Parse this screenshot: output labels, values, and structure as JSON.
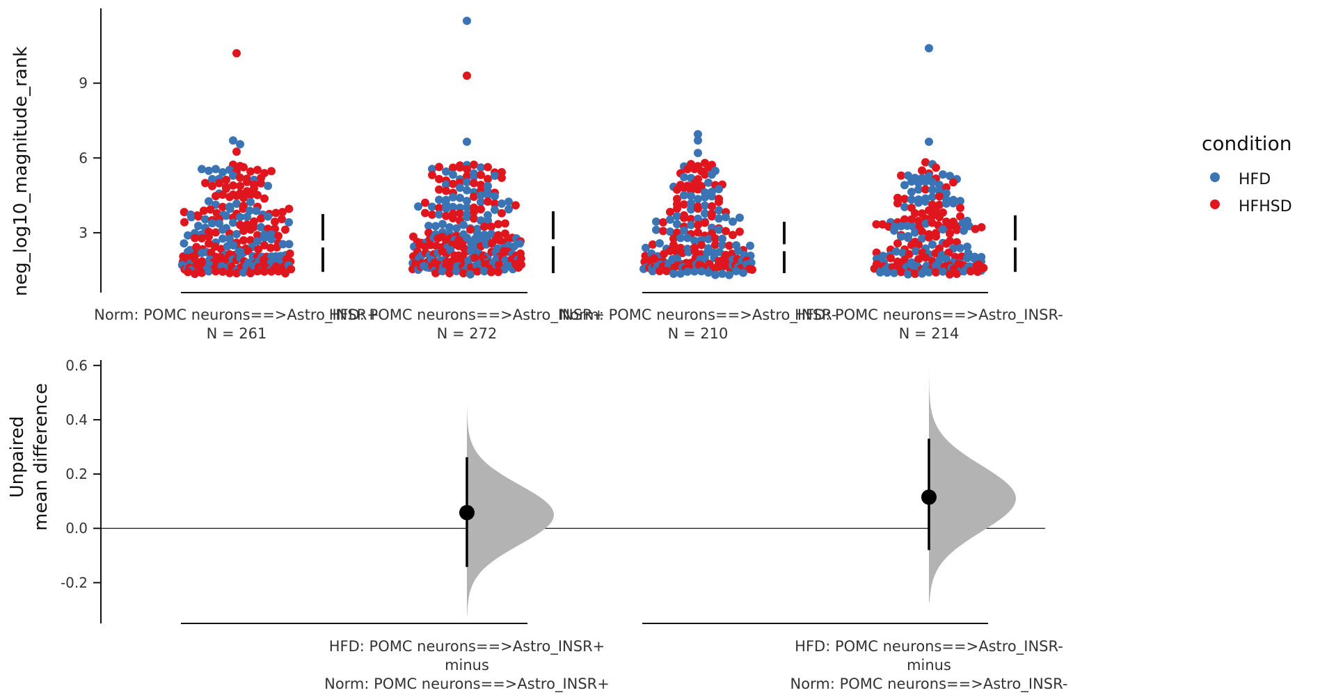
{
  "colors": {
    "HFD": "#3a74b4",
    "HFHSD": "#e0161e",
    "axis": "#111111",
    "text": "#333333",
    "curve": "#b3b3b3",
    "estimate": "#000000"
  },
  "chart_data": [
    {
      "type": "scatter",
      "variant": "swarm",
      "ylabel": "neg_log10_magnitude_rank",
      "ylim": [
        0.6,
        12.0
      ],
      "yticks": [
        3,
        6,
        9
      ],
      "groups": [
        {
          "label": "Norm: POMC neurons==>Astro_INSR+",
          "n_label": "N = 261",
          "n": 261,
          "mean": 2.55,
          "sd_low": 1.12,
          "sd_high": 1.2,
          "extreme_points": [
            {
              "y": 10.2,
              "condition": "HFHSD"
            },
            {
              "y": 6.7,
              "condition": "HFD"
            },
            {
              "y": 6.55,
              "condition": "HFD"
            },
            {
              "y": 6.25,
              "condition": "HFHSD"
            }
          ]
        },
        {
          "label": "HFD: POMC neurons==>Astro_INSR+",
          "n_label": "N = 272",
          "n": 272,
          "mean": 2.6,
          "sd_low": 1.22,
          "sd_high": 1.26,
          "extreme_points": [
            {
              "y": 11.5,
              "condition": "HFD"
            },
            {
              "y": 9.3,
              "condition": "HFHSD"
            },
            {
              "y": 6.65,
              "condition": "HFD"
            }
          ]
        },
        {
          "label": "Norm: POMC neurons==>Astro_INSR-",
          "n_label": "N = 210",
          "n": 210,
          "mean": 2.4,
          "sd_low": 1.02,
          "sd_high": 1.04,
          "extreme_points": [
            {
              "y": 6.95,
              "condition": "HFD"
            },
            {
              "y": 6.7,
              "condition": "HFD"
            },
            {
              "y": 6.2,
              "condition": "HFD"
            }
          ]
        },
        {
          "label": "HFD: POMC neurons==>Astro_INSR-",
          "n_label": "N = 214",
          "n": 214,
          "mean": 2.55,
          "sd_low": 1.12,
          "sd_high": 1.15,
          "extreme_points": [
            {
              "y": 10.4,
              "condition": "HFD"
            },
            {
              "y": 6.65,
              "condition": "HFD"
            },
            {
              "y": 5.75,
              "condition": "HFD"
            }
          ]
        }
      ],
      "legend": {
        "title": "condition",
        "position": "right",
        "entries": [
          {
            "name": "HFD",
            "color": "#3a74b4"
          },
          {
            "name": "HFHSD",
            "color": "#e0161e"
          }
        ]
      }
    },
    {
      "type": "scatter",
      "variant": "estimation",
      "ylabel_lines": [
        "Unpaired",
        "mean difference"
      ],
      "ylim": [
        -0.35,
        0.62
      ],
      "yticks": [
        -0.2,
        0.0,
        0.2,
        0.4,
        0.6
      ],
      "ytick_labels": [
        "-0.2",
        "0.0",
        "0.2",
        "0.4",
        "0.6"
      ],
      "comparisons": [
        {
          "label_lines": [
            "HFD: POMC neurons==>Astro_INSR+",
            "minus",
            "Norm: POMC neurons==>Astro_INSR+"
          ],
          "estimate": 0.058,
          "ci_low": -0.142,
          "ci_high": 0.262,
          "dist_min": -0.32,
          "dist_max": 0.45,
          "dist_mode": 0.05
        },
        {
          "label_lines": [
            "HFD: POMC neurons==>Astro_INSR-",
            "minus",
            "Norm: POMC neurons==>Astro_INSR-"
          ],
          "estimate": 0.115,
          "ci_low": -0.08,
          "ci_high": 0.33,
          "dist_min": -0.27,
          "dist_max": 0.58,
          "dist_mode": 0.11
        }
      ]
    }
  ]
}
